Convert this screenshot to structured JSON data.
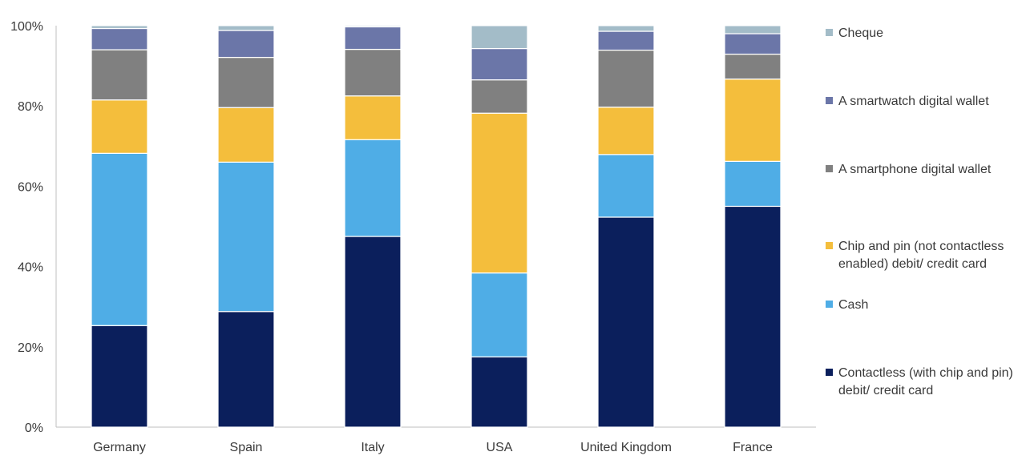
{
  "chart_data": {
    "type": "bar",
    "stacked": true,
    "title": "",
    "xlabel": "",
    "ylabel": "",
    "ylim": [
      0,
      100
    ],
    "y_ticks": [
      "0%",
      "20%",
      "40%",
      "60%",
      "80%",
      "100%"
    ],
    "grid": false,
    "legend_position": "right",
    "categories": [
      "Germany",
      "Spain",
      "Italy",
      "USA",
      "United Kingdom",
      "France"
    ],
    "series": [
      {
        "name": "Contactless (with chip and pin) debit/ credit card",
        "color": "#0b1f5c",
        "values": [
          25.3,
          28.8,
          47.5,
          17.5,
          52.3,
          55.0
        ]
      },
      {
        "name": "Cash",
        "color": "#4fade6",
        "values": [
          42.9,
          37.2,
          24.1,
          20.9,
          15.6,
          11.2
        ]
      },
      {
        "name": "Chip and pin (not contactless enabled) debit/ credit card",
        "color": "#f4be3c",
        "values": [
          13.3,
          13.6,
          10.9,
          39.8,
          11.8,
          20.5
        ]
      },
      {
        "name": "A smartphone digital wallet",
        "color": "#808080",
        "values": [
          12.5,
          12.5,
          11.6,
          8.3,
          14.2,
          6.2
        ]
      },
      {
        "name": "A smartwatch digital wallet",
        "color": "#6b76a8",
        "values": [
          5.3,
          6.7,
          5.6,
          7.8,
          4.7,
          5.1
        ]
      },
      {
        "name": "Cheque",
        "color": "#a3bcc8",
        "values": [
          0.7,
          1.2,
          0.3,
          5.7,
          1.4,
          2.0
        ]
      }
    ]
  }
}
